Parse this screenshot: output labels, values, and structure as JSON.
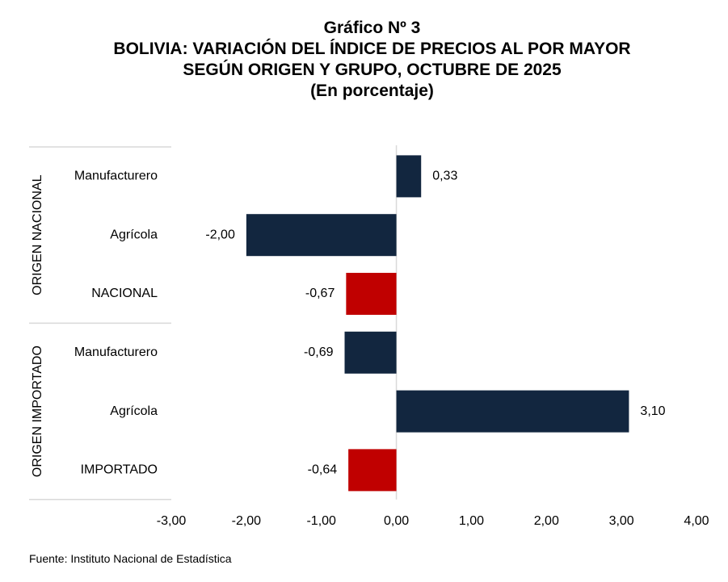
{
  "header": {
    "title_line1": "Gráfico Nº 3",
    "title_line2": "BOLIVIA: VARIACIÓN DEL ÍNDICE DE PRECIOS AL POR MAYOR",
    "title_line3": "SEGÚN ORIGEN Y GRUPO, OCTUBRE DE 2025",
    "title_line4": "(En porcentaje)"
  },
  "footer": {
    "source": "Fuente: Instituto Nacional de Estadística"
  },
  "colors": {
    "group_bar": "#12263f",
    "total_bar": "#c00000",
    "axis": "#d9d9d9"
  },
  "chart_data": {
    "type": "bar",
    "orientation": "horizontal",
    "title": "BOLIVIA: VARIACIÓN DEL ÍNDICE DE PRECIOS AL POR MAYOR SEGÚN ORIGEN Y GRUPO, OCTUBRE DE 2025",
    "subtitle": "(En porcentaje)",
    "xlim": [
      -3,
      4
    ],
    "xticks": [
      -3,
      -2,
      -1,
      0,
      1,
      2,
      3,
      4
    ],
    "xtick_labels": [
      "-3,00",
      "-2,00",
      "-1,00",
      "0,00",
      "1,00",
      "2,00",
      "3,00",
      "4,00"
    ],
    "groups": [
      {
        "label": "ORIGEN NACIONAL",
        "bars": [
          {
            "category": "Manufacturero",
            "value": 0.33,
            "label": "0,33",
            "kind": "group"
          },
          {
            "category": "Agrícola",
            "value": -2.0,
            "label": "-2,00",
            "kind": "group"
          },
          {
            "category": "NACIONAL",
            "value": -0.67,
            "label": "-0,67",
            "kind": "total"
          }
        ]
      },
      {
        "label": "ORIGEN IMPORTADO",
        "bars": [
          {
            "category": "Manufacturero",
            "value": -0.69,
            "label": "-0,69",
            "kind": "group"
          },
          {
            "category": "Agrícola",
            "value": 3.1,
            "label": "3,10",
            "kind": "group"
          },
          {
            "category": "IMPORTADO",
            "value": -0.64,
            "label": "-0,64",
            "kind": "total"
          }
        ]
      }
    ]
  }
}
